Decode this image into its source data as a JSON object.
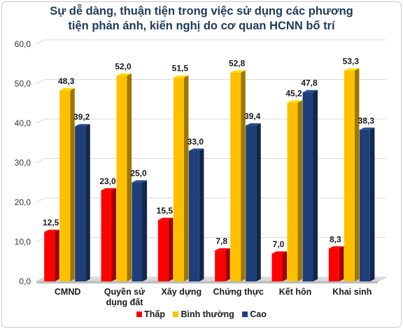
{
  "chart_data": {
    "type": "bar",
    "title": "Sự dễ dàng, thuận tiện trong việc sử dụng các phương tiện phản ánh, kiến nghị do cơ quan HCNN bố trí",
    "title_lines": [
      "Sự dễ dàng, thuận tiện trong việc sử dụng các phương",
      "tiện phản ánh, kiến nghị do cơ quan HCNN bố trí"
    ],
    "categories": [
      [
        "CMND"
      ],
      [
        "Quyền sử",
        "dụng đất"
      ],
      [
        "Xây dựng"
      ],
      [
        "Chứng thực"
      ],
      [
        "Kết hôn"
      ],
      [
        "Khai sinh"
      ]
    ],
    "series": [
      {
        "name": "Thấp",
        "color": "#ff0000",
        "values": [
          12.5,
          23.0,
          15.5,
          7.8,
          7.0,
          8.3
        ],
        "labels": [
          "12,5",
          "23,0",
          "15,5",
          "7,8",
          "7,0",
          "8,3"
        ]
      },
      {
        "name": "Bình thường",
        "color": "#ffc000",
        "values": [
          48.3,
          52.0,
          51.5,
          52.8,
          45.2,
          53.3
        ],
        "labels": [
          "48,3",
          "52,0",
          "51,5",
          "52,8",
          "45,2",
          "53,3"
        ]
      },
      {
        "name": "Cao",
        "color": "#1f3f7a",
        "values": [
          39.2,
          25.0,
          33.0,
          39.4,
          47.8,
          38.3
        ],
        "labels": [
          "39,2",
          "25,0",
          "33,0",
          "39,4",
          "47,8",
          "38,3"
        ]
      }
    ],
    "ylim": [
      0,
      60
    ],
    "yticks": [
      "0,0",
      "10,0",
      "20,0",
      "30,0",
      "40,0",
      "50,0",
      "60,0"
    ],
    "grid": true,
    "legend_position": "bottom",
    "xlabel": "",
    "ylabel": ""
  }
}
